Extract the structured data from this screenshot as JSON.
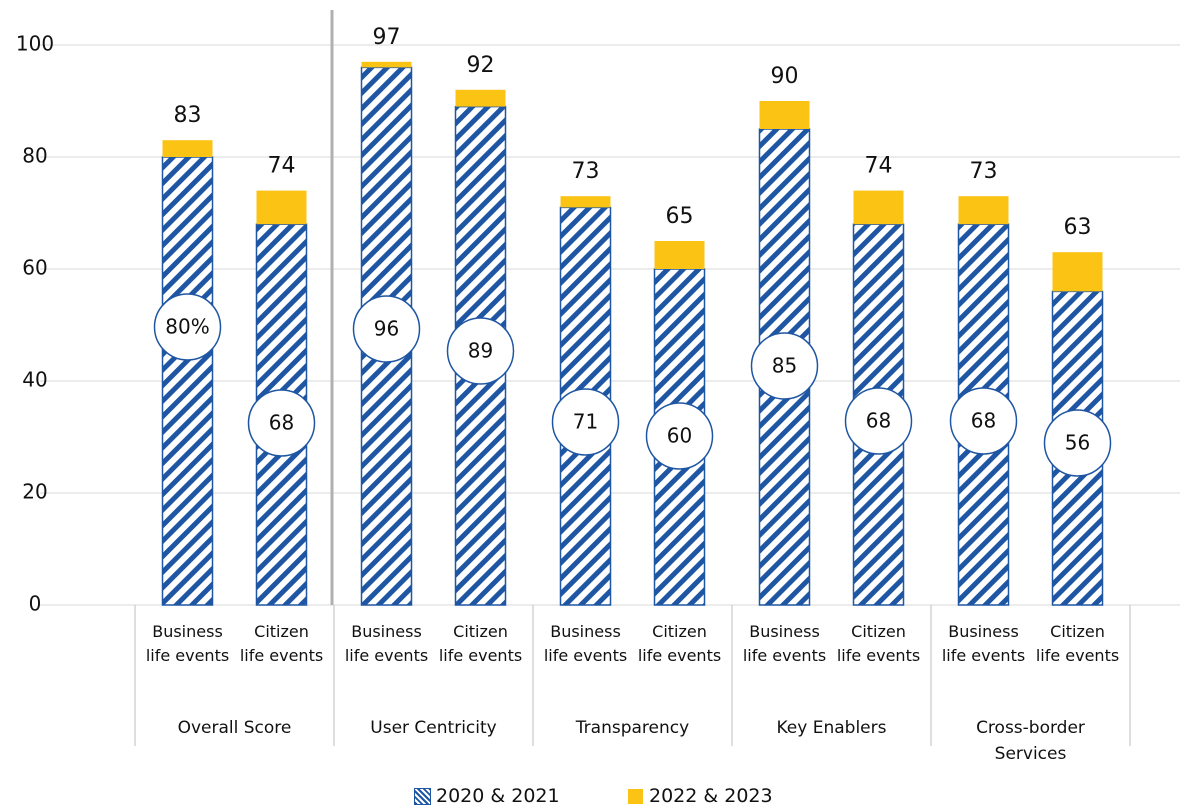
{
  "chart_data": {
    "type": "stacked_bar",
    "categories": [
      "Business life events",
      "Citizen life events",
      "Business life events",
      "Citizen life events",
      "Business life events",
      "Citizen life events",
      "Business life events",
      "Citizen life events",
      "Business life events",
      "Citizen life events"
    ],
    "groups": [
      "Overall Score",
      "User Centricity",
      "Transparency",
      "Key Enablers",
      "Cross-border Services"
    ],
    "series": [
      {
        "name": "2020 & 2021",
        "color": "#1f56a3",
        "pattern": "hatch",
        "values": [
          80,
          68,
          96,
          89,
          71,
          60,
          85,
          68,
          68,
          56
        ],
        "value_labels": [
          "80%",
          "68",
          "96",
          "89",
          "71",
          "60",
          "85",
          "68",
          "68",
          "56"
        ]
      },
      {
        "name": "2022 & 2023",
        "color": "#fbc314",
        "values": [
          3,
          6,
          1,
          3,
          2,
          5,
          5,
          6,
          5,
          7
        ]
      }
    ],
    "totals": [
      83,
      74,
      97,
      92,
      73,
      65,
      90,
      74,
      73,
      63
    ],
    "ylim": [
      0,
      100
    ],
    "yticks": [
      0,
      20,
      40,
      60,
      80,
      100
    ],
    "grid": true,
    "legend": "bottom"
  }
}
